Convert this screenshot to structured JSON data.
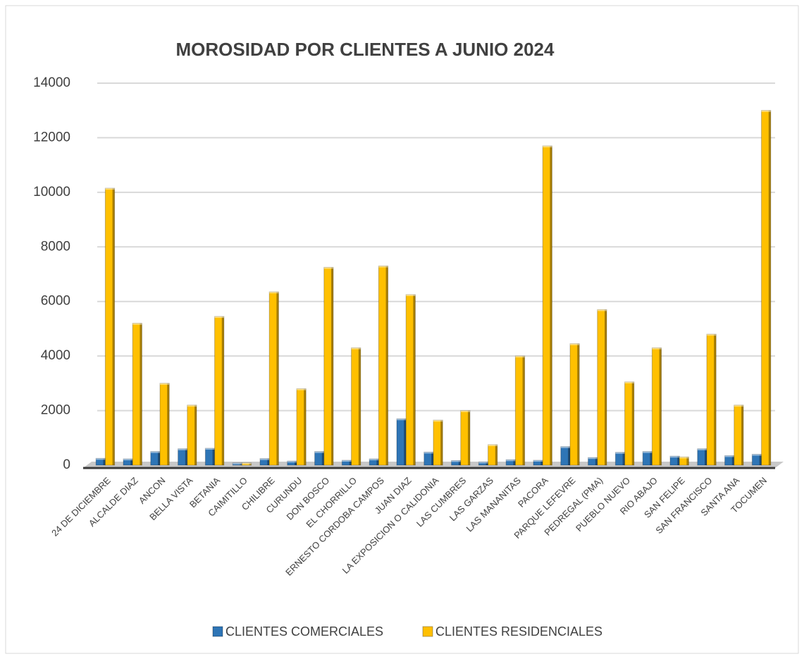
{
  "chart_data": {
    "type": "bar",
    "title": "MOROSIDAD POR CLIENTES A JUNIO 2024",
    "categories": [
      "24 DE DICIEMBRE",
      "ALCALDE DIAZ",
      "ANCON",
      "BELLA VISTA",
      "BETANIA",
      "CAIMITILLO",
      "CHILIBRE",
      "CURUNDU",
      "DON BOSCO",
      "EL CHORRILLO",
      "ERNESTO CORDOBA CAMPOS",
      "JUAN DIAZ",
      "LA EXPOSICION O CALIDONIA",
      "LAS CUMBRES",
      "LAS GARZAS",
      "LAS MANANITAS",
      "PACORA",
      "PARQUE LEFEVRE",
      "PEDREGAL (PMA)",
      "PUEBLO NUEVO",
      "RIO ABAJO",
      "SAN FELIPE",
      "SAN FRANCISCO",
      "SANTA ANA",
      "TOCUMEN"
    ],
    "series": [
      {
        "name": "CLIENTES COMERCIALES",
        "color": "#2e75b6",
        "values": [
          250,
          230,
          500,
          600,
          620,
          80,
          240,
          150,
          500,
          180,
          230,
          1700,
          480,
          170,
          120,
          200,
          180,
          680,
          280,
          470,
          500,
          330,
          600,
          350,
          400
        ]
      },
      {
        "name": "CLIENTES RESIDENCIALES",
        "color": "#ffc000",
        "values": [
          10150,
          5200,
          3000,
          2200,
          5450,
          80,
          6350,
          2800,
          7250,
          4300,
          7300,
          6250,
          1650,
          2000,
          750,
          4000,
          11700,
          4450,
          5700,
          3050,
          4300,
          300,
          4800,
          2200,
          13000
        ]
      }
    ],
    "ylim": [
      0,
      14000
    ],
    "yticks": [
      0,
      2000,
      4000,
      6000,
      8000,
      10000,
      12000,
      14000
    ],
    "grid": true
  }
}
